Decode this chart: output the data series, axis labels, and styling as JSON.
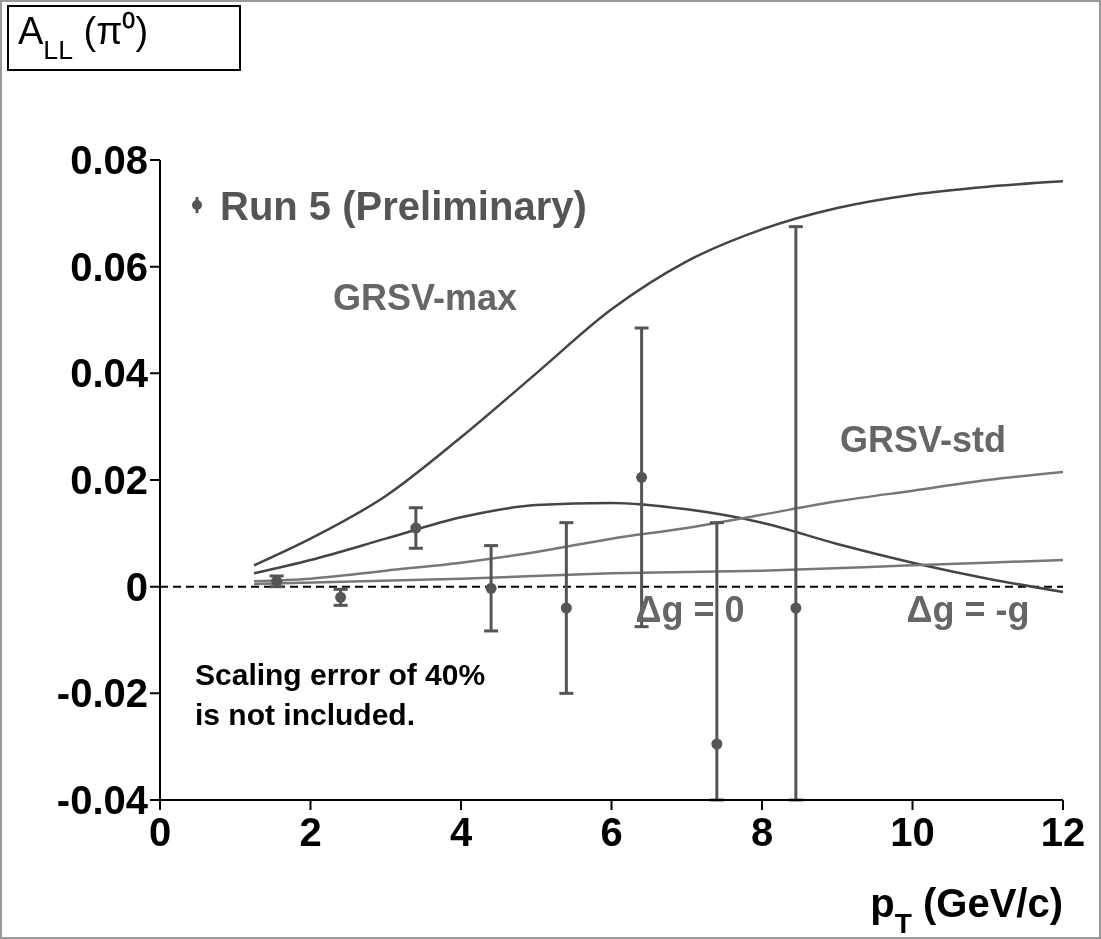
{
  "chart_data": {
    "type": "scatter",
    "title": "A$_{LL}$ (π⁰)",
    "xlabel": "p$_{T}$ (GeV/c)",
    "xlim": [
      0,
      12
    ],
    "xticks": [
      0,
      2,
      4,
      6,
      8,
      10,
      12
    ],
    "ylim": [
      -0.04,
      0.08
    ],
    "yticks": [
      -0.04,
      -0.02,
      0,
      0.02,
      0.04,
      0.06,
      0.08
    ],
    "legend": "top left",
    "grid": false,
    "series": [
      {
        "name": "Run 5 (Preliminary)",
        "marker": "circle",
        "color": "#555555",
        "x": [
          1.55,
          2.4,
          3.4,
          4.4,
          5.4,
          6.4,
          7.4,
          8.45
        ],
        "values": [
          0.001,
          -0.002,
          0.011,
          -0.0003,
          -0.004,
          0.0205,
          -0.0295,
          -0.004
        ],
        "errors": [
          0.001,
          0.0015,
          0.0038,
          0.008,
          0.016,
          0.028,
          [
            -0.04,
            0.012
          ],
          [
            -0.04,
            0.0675
          ]
        ]
      },
      {
        "type": "line",
        "color": "#444444",
        "x": [
          1.25,
          2,
          3,
          4,
          5,
          6,
          7,
          8,
          9,
          10,
          11,
          12
        ],
        "values": [
          0.004,
          0.009,
          0.017,
          0.028,
          0.04,
          0.052,
          0.061,
          0.067,
          0.071,
          0.0735,
          0.075,
          0.076
        ]
      },
      {
        "type": "line",
        "color": "#444444",
        "x": [
          1.25,
          2,
          3,
          4,
          5,
          6,
          7,
          8,
          9,
          10,
          11,
          12
        ],
        "values": [
          0.0025,
          0.005,
          0.009,
          0.013,
          0.0153,
          0.0157,
          0.0145,
          0.012,
          0.008,
          0.0045,
          0.0015,
          -0.001
        ]
      },
      {
        "type": "line",
        "color": "#777777",
        "x": [
          1.25,
          2,
          3,
          4,
          5,
          6,
          7,
          8,
          9,
          10,
          11,
          12
        ],
        "values": [
          0.001,
          0.0015,
          0.003,
          0.0045,
          0.0065,
          0.009,
          0.011,
          0.0135,
          0.016,
          0.018,
          0.02,
          0.0215
        ]
      },
      {
        "type": "line",
        "color": "#777777",
        "x": [
          1.25,
          4,
          6,
          8,
          10,
          12
        ],
        "values": [
          0.0005,
          0.0015,
          0.0025,
          0.003,
          0.004,
          0.005
        ]
      }
    ],
    "ref_lines": [
      {
        "axis": "y",
        "value": 0,
        "line_style": "dashed",
        "color": "#000000"
      }
    ],
    "annotations": [
      "GRSV-max",
      "GRSV-std",
      "Δg = 0",
      "Δg = -g",
      "Scaling error of 40%\nis not included."
    ]
  }
}
